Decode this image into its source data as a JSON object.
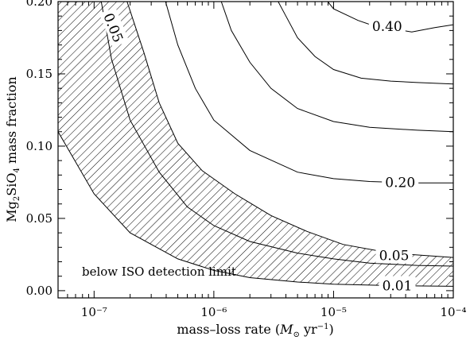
{
  "chart_data": {
    "type": "line",
    "subtype": "contour",
    "xlabel": "mass–loss rate (M⊙ yr⁻¹)",
    "ylabel": "Mg₂SiO₄ mass fraction",
    "xscale": "log",
    "xlim": [
      5e-08,
      0.0001
    ],
    "ylim": [
      -0.005,
      0.2
    ],
    "x_ticks": [
      {
        "value": 1e-07,
        "label": "10⁻⁷"
      },
      {
        "value": 1e-06,
        "label": "10⁻⁶"
      },
      {
        "value": 1e-05,
        "label": "10⁻⁵"
      },
      {
        "value": 0.0001,
        "label": "10⁻⁴"
      }
    ],
    "y_ticks": [
      {
        "value": 0.0,
        "label": "0.00"
      },
      {
        "value": 0.05,
        "label": "0.05"
      },
      {
        "value": 0.1,
        "label": "0.10"
      },
      {
        "value": 0.15,
        "label": "0.15"
      },
      {
        "value": 0.2,
        "label": "0.20"
      }
    ],
    "grid": false,
    "series": [
      {
        "name": "0.01",
        "label": "0.01",
        "points": [
          [
            5e-08,
            0.11
          ],
          [
            1e-07,
            0.067
          ],
          [
            2e-07,
            0.04
          ],
          [
            5e-07,
            0.022
          ],
          [
            1e-06,
            0.014
          ],
          [
            2e-06,
            0.009
          ],
          [
            5e-06,
            0.006
          ],
          [
            1e-05,
            0.0045
          ],
          [
            3e-05,
            0.0035
          ],
          [
            0.0001,
            0.003
          ]
        ]
      },
      {
        "name": "0.05a",
        "label": "0.05",
        "points": [
          [
            1.12e-07,
            0.205
          ],
          [
            1.4e-07,
            0.16
          ],
          [
            2e-07,
            0.118
          ],
          [
            3.5e-07,
            0.082
          ],
          [
            6e-07,
            0.058
          ],
          [
            1e-06,
            0.045
          ],
          [
            2e-06,
            0.034
          ],
          [
            5e-06,
            0.026
          ],
          [
            1e-05,
            0.022
          ],
          [
            2e-05,
            0.019
          ],
          [
            5e-05,
            0.0175
          ],
          [
            0.0001,
            0.017
          ]
        ]
      },
      {
        "name": "0.05b",
        "label": "0.05",
        "points": [
          [
            1.8e-07,
            0.205
          ],
          [
            2.6e-07,
            0.165
          ],
          [
            3.5e-07,
            0.13
          ],
          [
            5e-07,
            0.102
          ],
          [
            8e-07,
            0.083
          ],
          [
            1.5e-06,
            0.067
          ],
          [
            3e-06,
            0.052
          ],
          [
            6e-06,
            0.041
          ],
          [
            1.2e-05,
            0.032
          ],
          [
            3e-05,
            0.026
          ],
          [
            0.0001,
            0.023
          ]
        ]
      },
      {
        "name": "0.20",
        "label": "0.20",
        "points": [
          [
            3.8e-07,
            0.205
          ],
          [
            5e-07,
            0.17
          ],
          [
            7e-07,
            0.14
          ],
          [
            1e-06,
            0.118
          ],
          [
            2e-06,
            0.097
          ],
          [
            5e-06,
            0.082
          ],
          [
            1e-05,
            0.0775
          ],
          [
            2e-05,
            0.0755
          ],
          [
            5e-05,
            0.0745
          ],
          [
            0.0001,
            0.0745
          ]
        ]
      },
      {
        "name": "0.30",
        "label": "",
        "points": [
          [
            1.1e-06,
            0.205
          ],
          [
            1.4e-06,
            0.18
          ],
          [
            2e-06,
            0.158
          ],
          [
            3e-06,
            0.14
          ],
          [
            5e-06,
            0.126
          ],
          [
            1e-05,
            0.117
          ],
          [
            2e-05,
            0.113
          ],
          [
            5e-05,
            0.111
          ],
          [
            0.0001,
            0.11
          ]
        ]
      },
      {
        "name": "0.35",
        "label": "",
        "points": [
          [
            3.2e-06,
            0.205
          ],
          [
            4e-06,
            0.19
          ],
          [
            5e-06,
            0.175
          ],
          [
            7e-06,
            0.162
          ],
          [
            1e-05,
            0.153
          ],
          [
            1.7e-05,
            0.147
          ],
          [
            3e-05,
            0.145
          ],
          [
            5e-05,
            0.144
          ],
          [
            0.0001,
            0.143
          ]
        ]
      },
      {
        "name": "0.40",
        "label": "0.40",
        "points": [
          [
            8e-06,
            0.205
          ],
          [
            1e-05,
            0.195
          ],
          [
            1.6e-05,
            0.187
          ],
          [
            2.2e-05,
            0.183
          ],
          [
            4.5e-05,
            0.179
          ],
          [
            7e-05,
            0.182
          ],
          [
            0.0001,
            0.184
          ]
        ]
      }
    ],
    "contour_labels": [
      {
        "label": "0.05",
        "x": 1.45e-07,
        "y": 0.182,
        "rotate": 68
      },
      {
        "label": "0.40",
        "x": 2.8e-05,
        "y": 0.183,
        "rotate": 0
      },
      {
        "label": "0.20",
        "x": 3.6e-05,
        "y": 0.075,
        "rotate": 0
      },
      {
        "label": "0.05",
        "x": 3.2e-05,
        "y": 0.0245,
        "rotate": 0
      },
      {
        "label": "0.01",
        "x": 3.4e-05,
        "y": 0.0035,
        "rotate": 0
      }
    ],
    "region_annotation": "below ISO detection limit"
  }
}
